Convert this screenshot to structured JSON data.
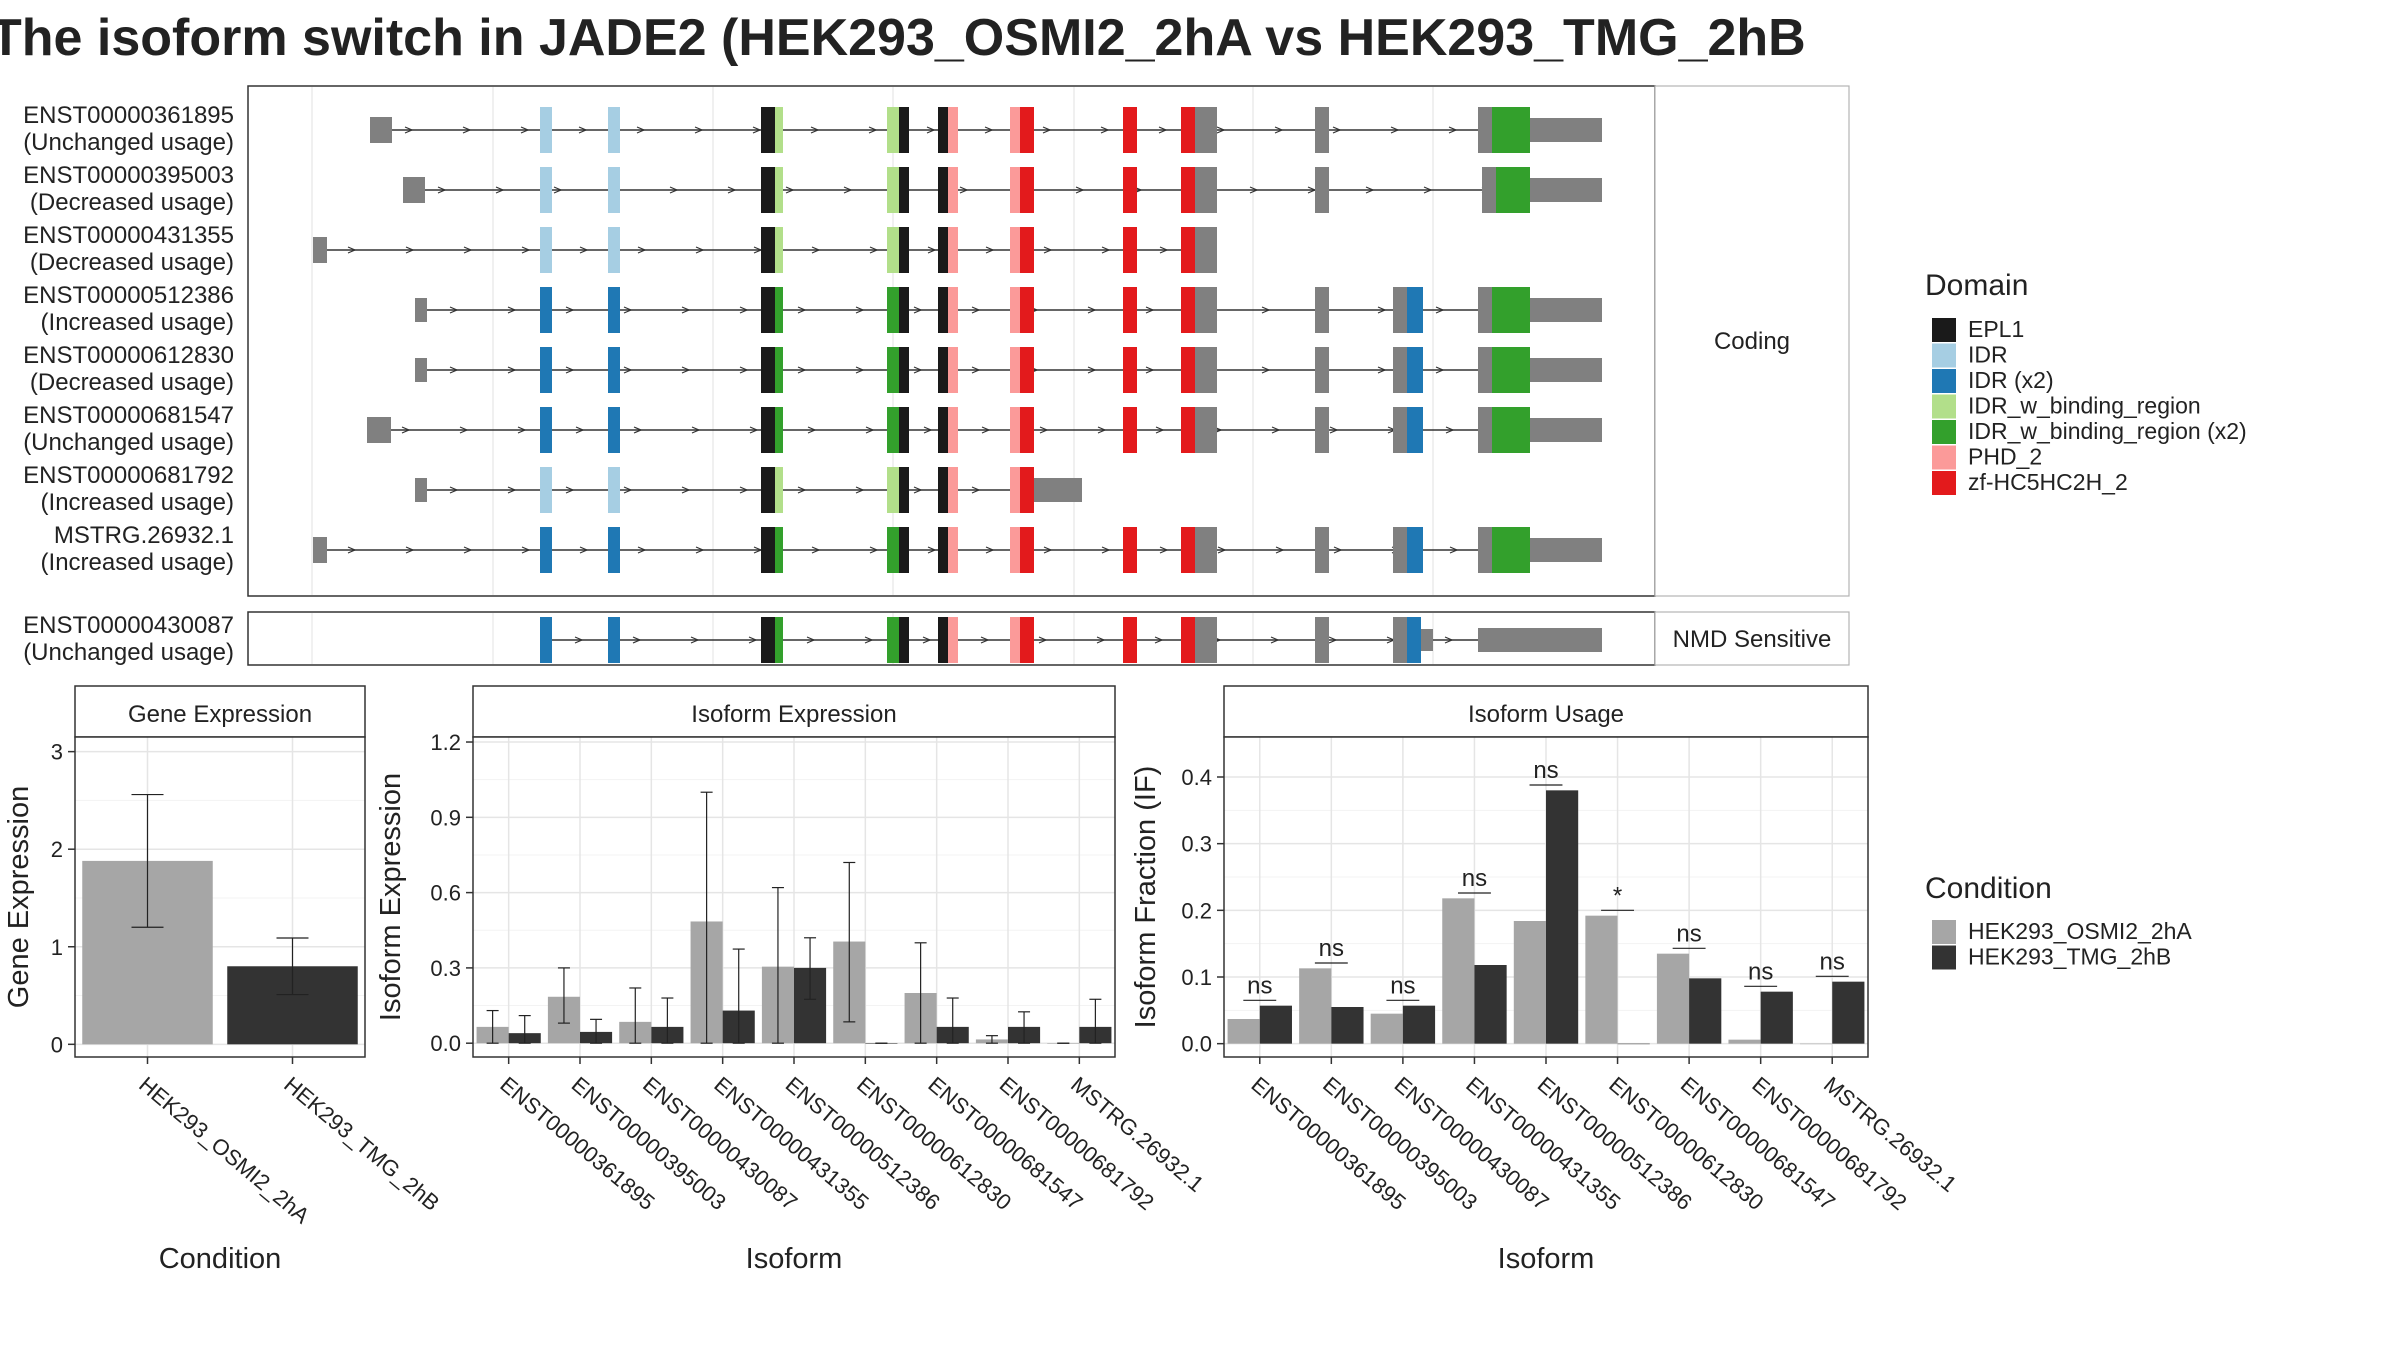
{
  "title": "The isoform switch in JADE2 (HEK293_OSMI2_2hA vs HEK293_TMG_2hB",
  "structure": {
    "coding_label": "Coding",
    "nmd_label": "NMD Sensitive",
    "transcripts": [
      {
        "id": "ENST00000361895",
        "usage": "(Unchanged usage)",
        "group": "coding"
      },
      {
        "id": "ENST00000395003",
        "usage": "(Decreased usage)",
        "group": "coding"
      },
      {
        "id": "ENST00000431355",
        "usage": "(Decreased usage)",
        "group": "coding"
      },
      {
        "id": "ENST00000512386",
        "usage": "(Increased usage)",
        "group": "coding"
      },
      {
        "id": "ENST00000612830",
        "usage": "(Decreased usage)",
        "group": "coding"
      },
      {
        "id": "ENST00000681547",
        "usage": "(Unchanged usage)",
        "group": "coding"
      },
      {
        "id": "ENST00000681792",
        "usage": "(Increased usage)",
        "group": "coding"
      },
      {
        "id": "MSTRG.26932.1",
        "usage": "(Increased usage)",
        "group": "coding"
      },
      {
        "id": "ENST00000430087",
        "usage": "(Unchanged usage)",
        "group": "nmd"
      }
    ]
  },
  "legend_domain": {
    "title": "Domain",
    "items": [
      {
        "label": "EPL1",
        "color": "#1a1a1a"
      },
      {
        "label": "IDR",
        "color": "#a6cee3"
      },
      {
        "label": "IDR (x2)",
        "color": "#1f78b4"
      },
      {
        "label": "IDR_w_binding_region",
        "color": "#b2df8a"
      },
      {
        "label": "IDR_w_binding_region (x2)",
        "color": "#33a02c"
      },
      {
        "label": "PHD_2",
        "color": "#fb9a99"
      },
      {
        "label": "zf-HC5HC2H_2",
        "color": "#e31a1c"
      }
    ]
  },
  "legend_condition": {
    "title": "Condition",
    "items": [
      {
        "label": "HEK293_OSMI2_2hA",
        "color": "#a6a6a6"
      },
      {
        "label": "HEK293_TMG_2hB",
        "color": "#333333"
      }
    ]
  },
  "chart_data": [
    {
      "type": "bar",
      "title": "Gene Expression",
      "xlabel": "Condition",
      "ylabel": "Gene Expression",
      "categories": [
        "HEK293_OSMI2_2hA",
        "HEK293_TMG_2hB"
      ],
      "values": [
        1.88,
        0.8
      ],
      "error_low": [
        1.2,
        0.51
      ],
      "error_high": [
        2.56,
        1.09
      ],
      "ylim": [
        -0.13,
        3.15
      ],
      "yticks": [
        0,
        1,
        2,
        3
      ],
      "grid": true
    },
    {
      "type": "bar",
      "title": "Isoform Expression",
      "xlabel": "Isoform",
      "ylabel": "Isoform Expression",
      "categories": [
        "ENST00000361895",
        "ENST00000395003",
        "ENST00000430087",
        "ENST00000431355",
        "ENST00000512386",
        "ENST00000612830",
        "ENST00000681547",
        "ENST00000681792",
        "MSTRG.26932.1"
      ],
      "series": [
        {
          "name": "HEK293_OSMI2_2hA",
          "values": [
            0.065,
            0.185,
            0.085,
            0.485,
            0.305,
            0.405,
            0.2,
            0.015,
            0.0
          ],
          "error_low": [
            0.0,
            0.08,
            0.0,
            0.0,
            0.0,
            0.085,
            0.0,
            0.0,
            0.0
          ],
          "error_high": [
            0.13,
            0.3,
            0.22,
            1.0,
            0.62,
            0.72,
            0.4,
            0.03,
            0.0
          ]
        },
        {
          "name": "HEK293_TMG_2hB",
          "values": [
            0.04,
            0.045,
            0.065,
            0.13,
            0.3,
            0.0,
            0.065,
            0.065,
            0.065
          ],
          "error_low": [
            0.0,
            0.0,
            0.0,
            0.0,
            0.175,
            0.0,
            0.0,
            0.0,
            0.0
          ],
          "error_high": [
            0.11,
            0.095,
            0.18,
            0.375,
            0.42,
            0.0,
            0.18,
            0.125,
            0.175
          ]
        }
      ],
      "ylim": [
        -0.055,
        1.22
      ],
      "yticks": [
        0.0,
        0.3,
        0.6,
        0.9,
        1.2
      ],
      "grid": true
    },
    {
      "type": "bar",
      "title": "Isoform Usage",
      "xlabel": "Isoform",
      "ylabel": "Isoform Fraction (IF)",
      "categories": [
        "ENST00000361895",
        "ENST00000395003",
        "ENST00000430087",
        "ENST00000431355",
        "ENST00000512386",
        "ENST00000612830",
        "ENST00000681547",
        "ENST00000681792",
        "MSTRG.26932.1"
      ],
      "series": [
        {
          "name": "HEK293_OSMI2_2hA",
          "values": [
            0.037,
            0.113,
            0.045,
            0.218,
            0.184,
            0.192,
            0.135,
            0.006,
            0.0
          ]
        },
        {
          "name": "HEK293_TMG_2hB",
          "values": [
            0.057,
            0.055,
            0.057,
            0.118,
            0.38,
            0.0,
            0.098,
            0.078,
            0.093
          ]
        }
      ],
      "significance": [
        "ns",
        "ns",
        "ns",
        "ns",
        "ns",
        "*",
        "ns",
        "ns",
        "ns"
      ],
      "ylim": [
        -0.02,
        0.46
      ],
      "yticks": [
        0.0,
        0.1,
        0.2,
        0.3,
        0.4
      ],
      "grid": true
    }
  ]
}
